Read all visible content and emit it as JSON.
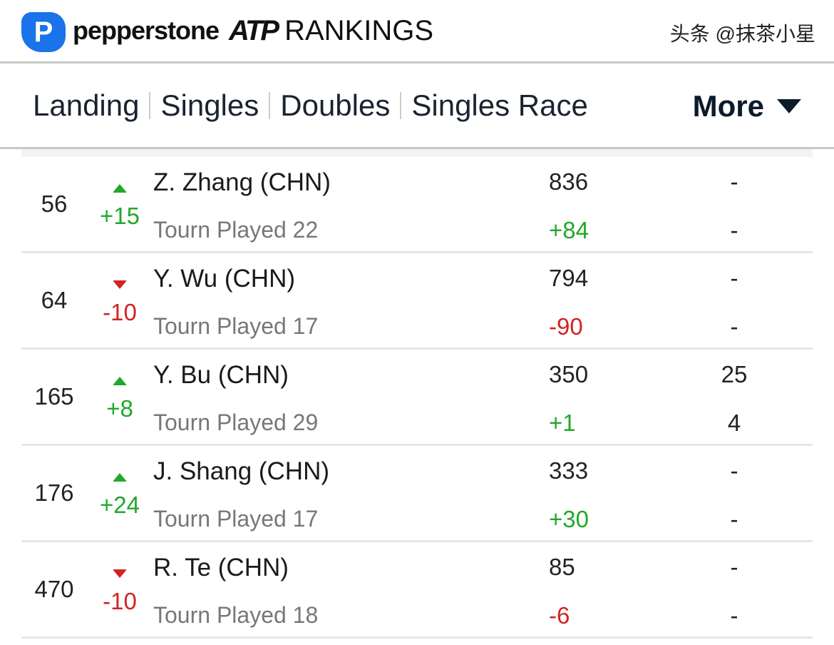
{
  "header": {
    "logo_letter": "P",
    "brand": "pepperstone",
    "atp": "ATP",
    "title": "RANKINGS"
  },
  "nav": {
    "tabs": [
      "Landing",
      "Singles",
      "Doubles",
      "Singles Race"
    ],
    "more": "More"
  },
  "colors": {
    "up": "#22a82a",
    "down": "#d32222"
  },
  "rows": [
    {
      "rank": "56",
      "dir": "up",
      "move": "+15",
      "name": "Z. Zhang (CHN)",
      "tourn": "Tourn Played 22",
      "points": "836",
      "points_change": "+84",
      "col5_top": "-",
      "col5_bottom": "-"
    },
    {
      "rank": "64",
      "dir": "down",
      "move": "-10",
      "name": "Y. Wu (CHN)",
      "tourn": "Tourn Played 17",
      "points": "794",
      "points_change": "-90",
      "col5_top": "-",
      "col5_bottom": "-"
    },
    {
      "rank": "165",
      "dir": "up",
      "move": "+8",
      "name": "Y. Bu (CHN)",
      "tourn": "Tourn Played 29",
      "points": "350",
      "points_change": "+1",
      "col5_top": "25",
      "col5_bottom": "4"
    },
    {
      "rank": "176",
      "dir": "up",
      "move": "+24",
      "name": "J. Shang (CHN)",
      "tourn": "Tourn Played 17",
      "points": "333",
      "points_change": "+30",
      "col5_top": "-",
      "col5_bottom": "-"
    },
    {
      "rank": "470",
      "dir": "down",
      "move": "-10",
      "name": "R. Te (CHN)",
      "tourn": "Tourn Played 18",
      "points": "85",
      "points_change": "-6",
      "col5_top": "-",
      "col5_bottom": "-"
    }
  ],
  "watermark": "头条 @抹茶小星"
}
